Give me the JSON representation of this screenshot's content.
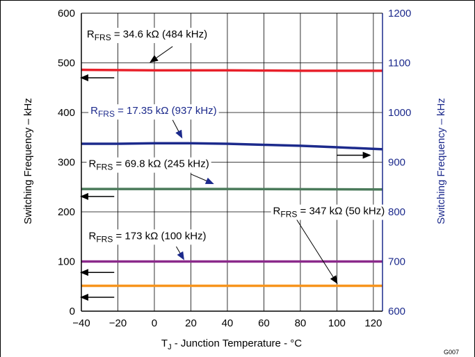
{
  "chart_data": {
    "type": "line",
    "xlabel": "T",
    "xlabel_sub": "J",
    "xlabel_rest": " - Junction Temperature - °C",
    "ylabel_left": "Switching Frequency – kHz",
    "ylabel_right": "Switching Frequency – kHz",
    "figure_id": "G007",
    "x_ticks": [
      "−40",
      "−20",
      "0",
      "20",
      "40",
      "60",
      "80",
      "100",
      "120"
    ],
    "x_tick_values": [
      -40,
      -20,
      0,
      20,
      40,
      60,
      80,
      100,
      120
    ],
    "y_left_ticks": [
      "0",
      "100",
      "200",
      "300",
      "400",
      "500",
      "600"
    ],
    "y_left_tick_values": [
      0,
      100,
      200,
      300,
      400,
      500,
      600
    ],
    "y_right_ticks": [
      "600",
      "700",
      "800",
      "900",
      "1000",
      "1100",
      "1200"
    ],
    "y_right_tick_values": [
      600,
      700,
      800,
      900,
      1000,
      1100,
      1200
    ],
    "xlim": [
      -40,
      125
    ],
    "ylim_left": [
      0,
      600
    ],
    "ylim_right": [
      600,
      1200
    ],
    "grid": true,
    "series": [
      {
        "name": "RFRS = 34.6 kΩ (484 kHz)",
        "axis": "left",
        "color": "#e8202a",
        "x": [
          -40,
          0,
          40,
          80,
          125
        ],
        "y": [
          486,
          485,
          485,
          484,
          484
        ]
      },
      {
        "name": "RFRS = 17.35 kΩ (937 kHz)",
        "axis": "right",
        "color": "#1c2a8c",
        "x": [
          -40,
          -20,
          0,
          20,
          40,
          60,
          80,
          100,
          125
        ],
        "y": [
          937,
          937,
          938,
          938,
          937,
          935,
          933,
          930,
          926
        ]
      },
      {
        "name": "RFRS = 69.8 kΩ (245 kHz)",
        "axis": "left",
        "color": "#4a7a5a",
        "x": [
          -40,
          40,
          125
        ],
        "y": [
          246,
          246,
          245
        ]
      },
      {
        "name": "RFRS = 173 kΩ (100 kHz)",
        "axis": "left",
        "color": "#8b2a8b",
        "x": [
          -40,
          125
        ],
        "y": [
          100,
          100
        ]
      },
      {
        "name": "RFRS = 347 kΩ (50 kHz)",
        "axis": "left",
        "color": "#f7941d",
        "x": [
          -40,
          125
        ],
        "y": [
          51,
          51
        ]
      }
    ],
    "annotations": [
      {
        "main": "R",
        "sub": "FRS",
        "rest": " = 34.6 kΩ (484 kHz)",
        "color": "#000000",
        "pos": [
          -37,
          551
        ]
      },
      {
        "main": "R",
        "sub": "FRS",
        "rest": " = 17.35 kΩ (937 kHz)",
        "color": "#1c2a8c",
        "pos": [
          -35,
          397
        ]
      },
      {
        "main": "R",
        "sub": "FRS",
        "rest": " = 69.8 kΩ (245 kHz)",
        "color": "#000000",
        "pos": [
          -36,
          290
        ]
      },
      {
        "main": "R",
        "sub": "FRS",
        "rest": " = 347 kΩ (50 kHz)",
        "color": "#000000",
        "pos": [
          65,
          195
        ]
      },
      {
        "main": "R",
        "sub": "FRS",
        "rest": " = 173 kΩ (100 kHz)",
        "color": "#000000",
        "pos": [
          -36,
          145
        ]
      }
    ],
    "pointers": [
      {
        "from": [
          10,
          533
        ],
        "to": [
          -2,
          502
        ],
        "color": "#000000"
      },
      {
        "from": [
          10,
          385
        ],
        "to": [
          15,
          350
        ],
        "color": "#1c2a8c"
      },
      {
        "from": [
          20,
          276
        ],
        "to": [
          32,
          257
        ],
        "color": "#1c2a8c"
      },
      {
        "from": [
          12,
          130
        ],
        "to": [
          16,
          105
        ],
        "color": "#1c2a8c"
      },
      {
        "from": [
          77,
          190
        ],
        "to": [
          100,
          57
        ],
        "color": "#000000"
      }
    ],
    "axis_arrows": [
      {
        "dir": "left",
        "x_from": -22,
        "x_to": -40,
        "y": 470
      },
      {
        "dir": "left",
        "x_from": -22,
        "x_to": -40,
        "y": 231
      },
      {
        "dir": "left",
        "x_from": -22,
        "x_to": -40,
        "y": 78
      },
      {
        "dir": "left",
        "x_from": -22,
        "x_to": -40,
        "y": 28
      },
      {
        "dir": "right",
        "x_from": 100,
        "x_to": 118,
        "y": 314
      }
    ]
  }
}
